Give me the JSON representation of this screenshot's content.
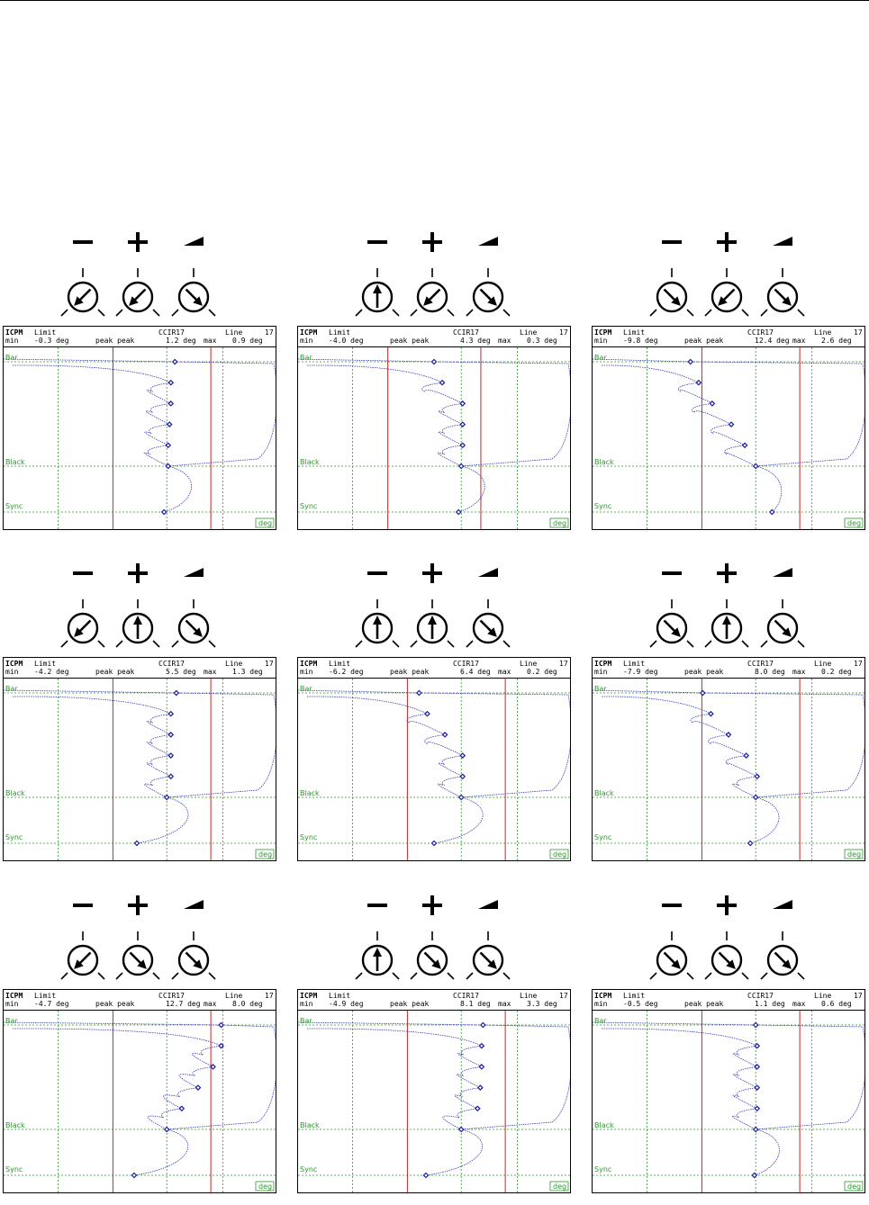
{
  "header_labels": {
    "title": "ICPM",
    "limit": "Limit",
    "min": "min",
    "standard": "CCIR17",
    "line": "Line",
    "line_num": "17",
    "pp": "peak peak",
    "max": "max"
  },
  "levels": {
    "bar": "Bar",
    "black": "Black",
    "sync": "Sync"
  },
  "unit_badge": "deg",
  "knob_symbols": [
    "minus-symbol",
    "plus-symbol",
    "ramp-symbol"
  ],
  "colors": {
    "grid": "#2a9a2a",
    "limit": "#d42020",
    "trace": "#3a3ab0",
    "marker": "#1a1aa0"
  },
  "panels": [
    {
      "knobs": [
        "down-left",
        "down-left",
        "down-right"
      ],
      "limit_min": "-0.3 deg",
      "pp": "1.2 deg",
      "max": "0.9 deg",
      "chart_data": {
        "type": "scatter",
        "xlim": [
          -12,
          8
        ],
        "limits": [
          -1.1,
          0.9
        ],
        "markers": [
          [
            0.6,
            "bar"
          ],
          [
            0.3,
            0.2
          ],
          [
            0.3,
            0.4
          ],
          [
            0.2,
            0.6
          ],
          [
            0.1,
            0.8
          ],
          [
            0.1,
            "black"
          ],
          [
            -0.2,
            "sync"
          ]
        ]
      }
    },
    {
      "knobs": [
        "up",
        "down-left",
        "down-right"
      ],
      "limit_min": "-4.0 deg",
      "pp": "4.3 deg",
      "max": "0.3 deg",
      "chart_data": {
        "type": "scatter",
        "xlim": [
          -12,
          8
        ],
        "limits": [
          -1.5,
          0.4
        ],
        "markers": [
          [
            -2.0,
            "bar"
          ],
          [
            -1.4,
            0.2
          ],
          [
            0.1,
            0.4
          ],
          [
            0.1,
            0.6
          ],
          [
            0.1,
            0.8
          ],
          [
            0.0,
            "black"
          ],
          [
            -0.2,
            "sync"
          ]
        ]
      }
    },
    {
      "knobs": [
        "down-right",
        "down-left",
        "down-right"
      ],
      "limit_min": "-9.8 deg",
      "pp": "12.4 deg",
      "max": "2.6 deg",
      "chart_data": {
        "type": "scatter",
        "xlim": [
          -12,
          8
        ],
        "limits": [
          -1.1,
          0.9
        ],
        "markers": [
          [
            -4.8,
            "bar"
          ],
          [
            -4.2,
            0.2
          ],
          [
            -3.2,
            0.4
          ],
          [
            -1.8,
            0.6
          ],
          [
            -0.8,
            0.8
          ],
          [
            0.0,
            "black"
          ],
          [
            1.2,
            "sync"
          ]
        ]
      }
    },
    {
      "knobs": [
        "down-left",
        "up",
        "down-right"
      ],
      "limit_min": "-4.2 deg",
      "pp": "5.5 deg",
      "max": "1.3 deg",
      "chart_data": {
        "type": "scatter",
        "xlim": [
          -12,
          8
        ],
        "limits": [
          -1.1,
          0.9
        ],
        "markers": [
          [
            0.7,
            "bar"
          ],
          [
            0.3,
            0.2
          ],
          [
            0.3,
            0.4
          ],
          [
            0.3,
            0.6
          ],
          [
            0.3,
            0.8
          ],
          [
            0.0,
            "black"
          ],
          [
            -2.2,
            "sync"
          ]
        ]
      }
    },
    {
      "knobs": [
        "up",
        "up",
        "down-right"
      ],
      "limit_min": "-6.2 deg",
      "pp": "6.4 deg",
      "max": "0.2 deg",
      "chart_data": {
        "type": "scatter",
        "xlim": [
          -12,
          8
        ],
        "limits": [
          -1.1,
          0.9
        ],
        "markers": [
          [
            -3.1,
            "bar"
          ],
          [
            -2.5,
            0.2
          ],
          [
            -1.2,
            0.4
          ],
          [
            0.1,
            0.6
          ],
          [
            0.1,
            0.8
          ],
          [
            0.0,
            "black"
          ],
          [
            -2.0,
            "sync"
          ]
        ]
      }
    },
    {
      "knobs": [
        "down-right",
        "up",
        "down-right"
      ],
      "limit_min": "-7.9 deg",
      "pp": "8.0 deg",
      "max": "0.2 deg",
      "chart_data": {
        "type": "scatter",
        "xlim": [
          -12,
          8
        ],
        "limits": [
          -1.1,
          0.9
        ],
        "markers": [
          [
            -3.9,
            "bar"
          ],
          [
            -3.3,
            0.2
          ],
          [
            -2.0,
            0.4
          ],
          [
            -0.7,
            0.6
          ],
          [
            0.1,
            0.8
          ],
          [
            0.0,
            "black"
          ],
          [
            -0.4,
            "sync"
          ]
        ]
      }
    },
    {
      "knobs": [
        "down-left",
        "down-right",
        "down-right"
      ],
      "limit_min": "-4.7 deg",
      "pp": "12.7 deg",
      "max": "8.0 deg",
      "chart_data": {
        "type": "scatter",
        "xlim": [
          -12,
          8
        ],
        "limits": [
          -1.1,
          0.9
        ],
        "markers": [
          [
            4.0,
            "bar"
          ],
          [
            4.0,
            0.2
          ],
          [
            3.4,
            0.4
          ],
          [
            2.3,
            0.6
          ],
          [
            1.1,
            0.8
          ],
          [
            0.0,
            "black"
          ],
          [
            -2.4,
            "sync"
          ]
        ]
      }
    },
    {
      "knobs": [
        "up",
        "down-right",
        "down-right"
      ],
      "limit_min": "-4.9 deg",
      "pp": "8.1 deg",
      "max": "3.3 deg",
      "chart_data": {
        "type": "scatter",
        "xlim": [
          -12,
          8
        ],
        "limits": [
          -1.1,
          0.9
        ],
        "markers": [
          [
            1.6,
            "bar"
          ],
          [
            1.5,
            0.2
          ],
          [
            1.5,
            0.4
          ],
          [
            1.4,
            0.6
          ],
          [
            1.2,
            0.8
          ],
          [
            0.0,
            "black"
          ],
          [
            -2.6,
            "sync"
          ]
        ]
      }
    },
    {
      "knobs": [
        "down-right",
        "down-right",
        "down-right"
      ],
      "limit_min": "-0.5 deg",
      "pp": "1.1 deg",
      "max": "0.6 deg",
      "chart_data": {
        "type": "scatter",
        "xlim": [
          -12,
          8
        ],
        "limits": [
          -1.1,
          0.9
        ],
        "markers": [
          [
            0.0,
            "bar"
          ],
          [
            0.1,
            0.2
          ],
          [
            0.1,
            0.4
          ],
          [
            0.1,
            0.6
          ],
          [
            0.1,
            0.8
          ],
          [
            0.0,
            "black"
          ],
          [
            -0.1,
            "sync"
          ]
        ]
      }
    }
  ]
}
